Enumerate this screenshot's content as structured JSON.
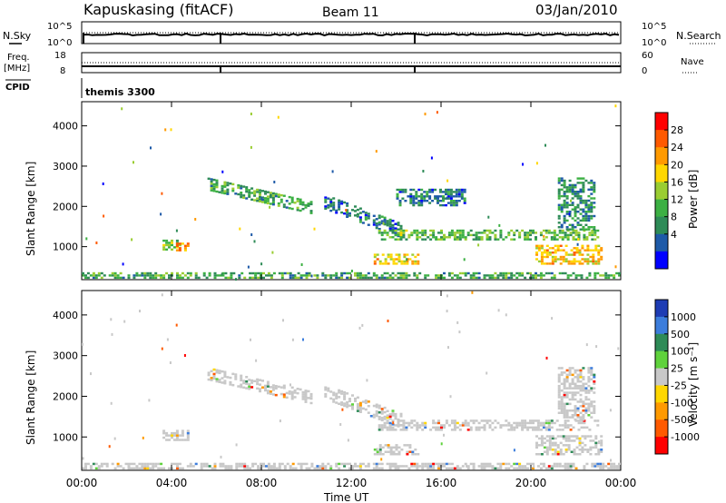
{
  "header": {
    "station": "Kapuskasing (fitACF)",
    "beam": "Beam 11",
    "date": "03/Jan/2010"
  },
  "panels": {
    "nsky": {
      "left_label": "N.Sky",
      "right_label": "N.Search",
      "left_ticks": [
        "10^5",
        "10^0"
      ],
      "right_ticks": [
        "10^5",
        "10^0"
      ]
    },
    "freq": {
      "left_label": "Freq.",
      "left_unit": "[MHz]",
      "right_label": "Nave",
      "left_ticks": [
        "18",
        "8"
      ],
      "right_ticks": [
        "60",
        "0"
      ]
    },
    "cpid": {
      "label": "CPID",
      "value": "themis 3300"
    }
  },
  "colorbars": {
    "power": {
      "label": "Power [dB]",
      "ticks": [
        "28",
        "24",
        "20",
        "16",
        "12",
        "8",
        "4"
      ],
      "colors": [
        "#ff0000",
        "#ff5a00",
        "#ff9a00",
        "#ffd700",
        "#9acd32",
        "#3cb043",
        "#2e8b57",
        "#1e5aa8",
        "#0000ff"
      ]
    },
    "velocity": {
      "label": "Velocity [m s⁻¹]",
      "ticks": [
        "1000",
        "500",
        "100",
        "25",
        "-25",
        "-100",
        "-500",
        "-1000"
      ],
      "colors": [
        "#1e3cb4",
        "#3c7ddc",
        "#2e8b57",
        "#5fd23c",
        "#c8c8c8",
        "#ffd700",
        "#ff9a00",
        "#ff5a00",
        "#ff0000"
      ]
    }
  },
  "chart_data": [
    {
      "type": "heatmap",
      "title": "Power",
      "ylabel": "Slant Range [km]",
      "xlabel": "Time UT",
      "ylim": [
        180,
        4600
      ],
      "xlim": [
        0,
        24
      ],
      "y_ticks": [
        1000,
        2000,
        3000,
        4000
      ],
      "y_tick_labels": [
        "1000",
        "2000",
        "3000",
        "4000"
      ],
      "x_ticks": [
        0,
        4,
        8,
        12,
        16,
        20,
        24
      ],
      "x_tick_labels": [
        "00:00",
        "04:00",
        "08:00",
        "12:00",
        "16:00",
        "20:00",
        "00:00"
      ],
      "color_scale_db": [
        0,
        30
      ],
      "regions": [
        {
          "t": [
            3.6,
            4.4
          ],
          "r": [
            900,
            1150
          ],
          "level": 14
        },
        {
          "t": [
            4.2,
            4.8
          ],
          "r": [
            880,
            1050
          ],
          "level": 24
        },
        {
          "t": [
            5.6,
            10.2
          ],
          "r": [
            1800,
            2700
          ],
          "level": 10,
          "band": "diag"
        },
        {
          "t": [
            10.8,
            14.2
          ],
          "r": [
            1200,
            2300
          ],
          "level": 6,
          "band": "diag"
        },
        {
          "t": [
            13.2,
            23.0
          ],
          "r": [
            1150,
            1400
          ],
          "level": 12
        },
        {
          "t": [
            13.0,
            15.0
          ],
          "r": [
            550,
            800
          ],
          "level": 20
        },
        {
          "t": [
            20.2,
            23.2
          ],
          "r": [
            550,
            1000
          ],
          "level": 20
        },
        {
          "t": [
            21.2,
            22.8
          ],
          "r": [
            1400,
            2700
          ],
          "level": 8
        },
        {
          "t": [
            14.0,
            17.0
          ],
          "r": [
            2000,
            2400
          ],
          "level": 6
        },
        {
          "t": [
            0.0,
            24.0
          ],
          "r": [
            200,
            350
          ],
          "level": 10
        }
      ]
    },
    {
      "type": "heatmap",
      "title": "Velocity",
      "ylabel": "Slant Range [km]",
      "xlabel": "Time UT",
      "ylim": [
        180,
        4600
      ],
      "xlim": [
        0,
        24
      ],
      "y_ticks": [
        1000,
        2000,
        3000,
        4000
      ],
      "y_tick_labels": [
        "1000",
        "2000",
        "3000",
        "4000"
      ],
      "x_ticks": [
        0,
        4,
        8,
        12,
        16,
        20,
        24
      ],
      "x_tick_labels": [
        "00:00",
        "04:00",
        "08:00",
        "12:00",
        "16:00",
        "20:00",
        "00:00"
      ],
      "color_scale_ms": [
        -1000,
        1000
      ],
      "regions": [
        {
          "t": [
            3.6,
            4.8
          ],
          "r": [
            900,
            1150
          ],
          "level": 0
        },
        {
          "t": [
            5.6,
            10.2
          ],
          "r": [
            1800,
            2700
          ],
          "level": 0,
          "band": "diag"
        },
        {
          "t": [
            10.8,
            14.2
          ],
          "r": [
            1200,
            2300
          ],
          "level": 0,
          "band": "diag"
        },
        {
          "t": [
            13.2,
            23.0
          ],
          "r": [
            1150,
            1400
          ],
          "level": 0
        },
        {
          "t": [
            13.0,
            15.0
          ],
          "r": [
            550,
            800
          ],
          "level": 0
        },
        {
          "t": [
            20.2,
            23.2
          ],
          "r": [
            550,
            1000
          ],
          "level": 0
        },
        {
          "t": [
            21.2,
            22.8
          ],
          "r": [
            1400,
            2700
          ],
          "level": 0
        },
        {
          "t": [
            0.0,
            24.0
          ],
          "r": [
            200,
            350
          ],
          "level": 0
        }
      ]
    }
  ]
}
